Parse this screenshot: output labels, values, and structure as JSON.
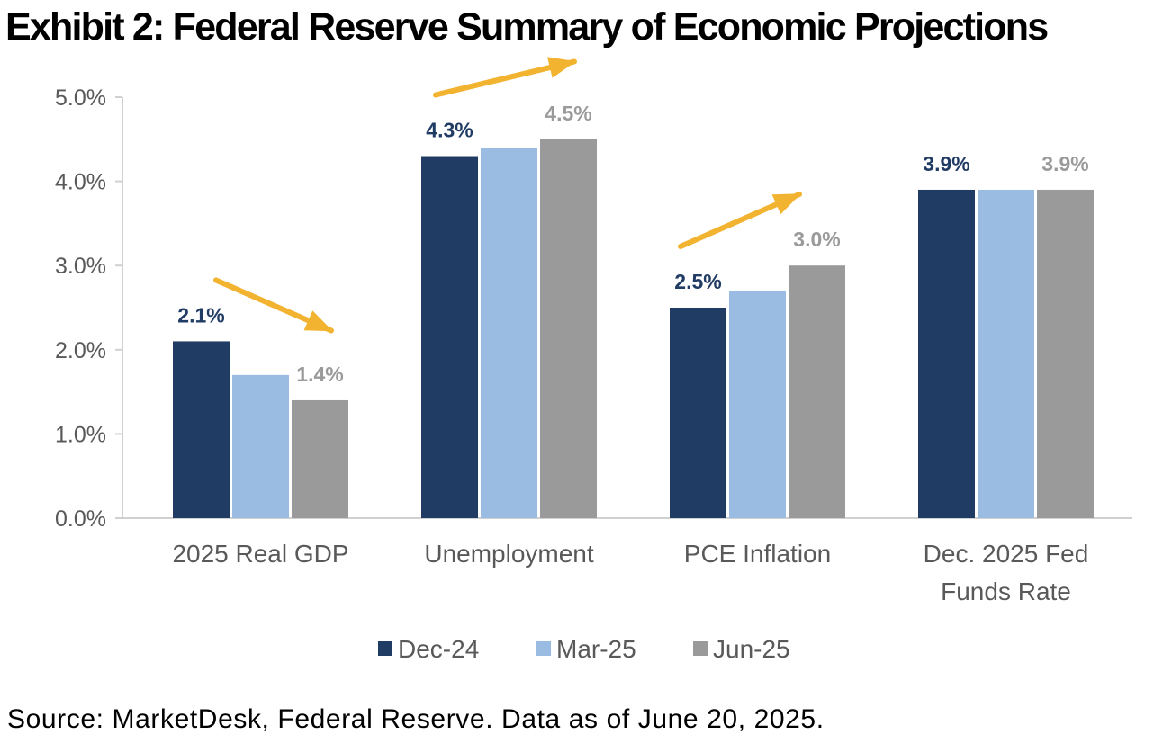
{
  "title": "Exhibit 2: Federal Reserve Summary of Economic Projections",
  "source": "Source: MarketDesk, Federal Reserve. Data as of June 20, 2025.",
  "colors": {
    "Dec-24": "#213c64",
    "Mar-25": "#9bbce2",
    "Jun-25": "#9a9a9a",
    "arrow": "#f2b330",
    "axis": "#d0d0d0"
  },
  "chart_data": {
    "type": "bar",
    "categories": [
      "2025 Real GDP",
      "Unemployment",
      "PCE Inflation",
      "Dec. 2025 Fed Funds Rate"
    ],
    "category_lines": [
      [
        "2025 Real GDP"
      ],
      [
        "Unemployment"
      ],
      [
        "PCE Inflation"
      ],
      [
        "Dec. 2025 Fed",
        "Funds Rate"
      ]
    ],
    "series": [
      {
        "name": "Dec-24",
        "values": [
          2.1,
          4.3,
          2.5,
          3.9
        ]
      },
      {
        "name": "Mar-25",
        "values": [
          1.7,
          4.4,
          2.7,
          3.9
        ]
      },
      {
        "name": "Jun-25",
        "values": [
          1.4,
          4.5,
          3.0,
          3.9
        ]
      }
    ],
    "data_labels": [
      {
        "series": "Dec-24",
        "category": 0,
        "text": "2.1%"
      },
      {
        "series": "Jun-25",
        "category": 0,
        "text": "1.4%"
      },
      {
        "series": "Dec-24",
        "category": 1,
        "text": "4.3%"
      },
      {
        "series": "Jun-25",
        "category": 1,
        "text": "4.5%"
      },
      {
        "series": "Dec-24",
        "category": 2,
        "text": "2.5%"
      },
      {
        "series": "Jun-25",
        "category": 2,
        "text": "3.0%"
      },
      {
        "series": "Dec-24",
        "category": 3,
        "text": "3.9%"
      },
      {
        "series": "Jun-25",
        "category": 3,
        "text": "3.9%"
      }
    ],
    "trend_arrows": [
      {
        "category": 0,
        "direction": "down"
      },
      {
        "category": 1,
        "direction": "up"
      },
      {
        "category": 2,
        "direction": "up"
      }
    ],
    "yticks": [
      "0.0%",
      "1.0%",
      "2.0%",
      "3.0%",
      "4.0%",
      "5.0%"
    ],
    "ylim": [
      0,
      5
    ],
    "ylabel": "",
    "xlabel": "",
    "legend_position": "bottom",
    "grid": false
  }
}
